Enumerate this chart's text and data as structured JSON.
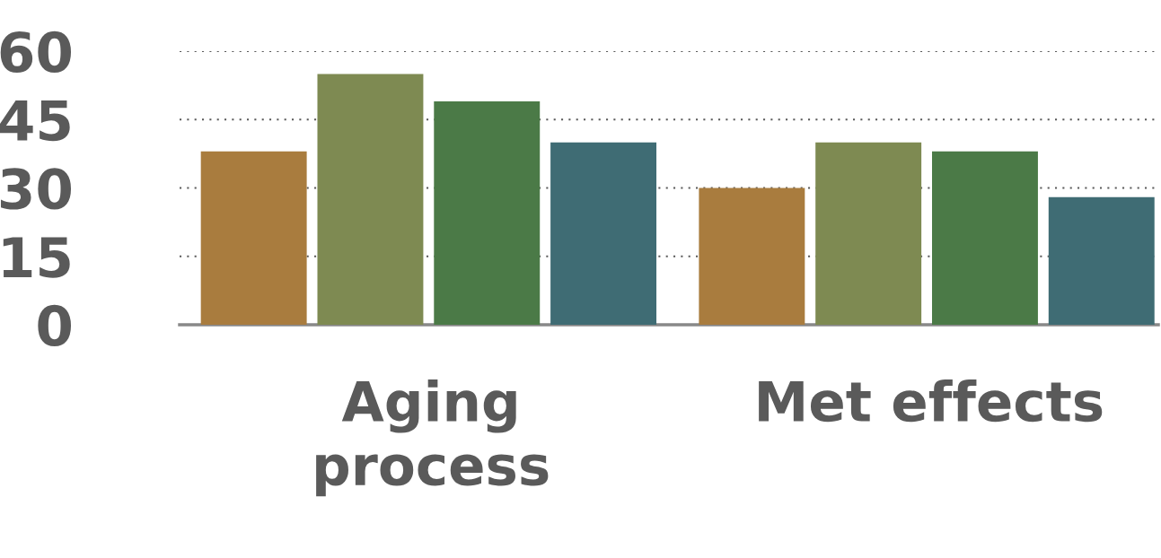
{
  "chart_data": {
    "type": "bar",
    "categories": [
      "Aging process",
      "Met effects"
    ],
    "series": [
      {
        "color": "#a97c3e",
        "values": [
          38,
          30
        ]
      },
      {
        "color": "#7e8a52",
        "values": [
          55,
          40
        ]
      },
      {
        "color": "#4b7a47",
        "values": [
          49,
          38
        ]
      },
      {
        "color": "#3f6c74",
        "values": [
          40,
          28
        ]
      }
    ],
    "ylim": [
      0,
      60
    ],
    "yticks": [
      0,
      15,
      30,
      45,
      60
    ],
    "grid": "y",
    "legend": false
  }
}
